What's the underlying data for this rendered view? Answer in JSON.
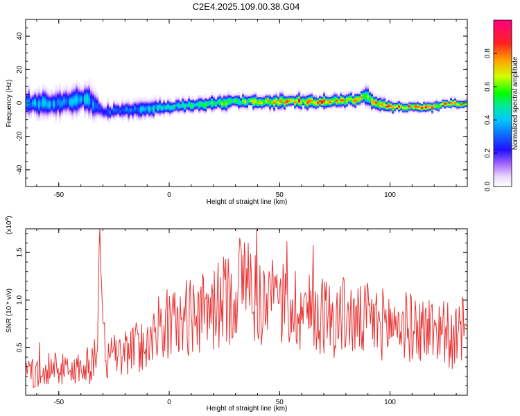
{
  "title": "C2E4.2025.109.00.38.G04",
  "colors": {
    "snr_line": "#e83232",
    "spectrogram_background": "#ffffff",
    "colormap": [
      "#ffffff",
      "#e8d8ff",
      "#a060ff",
      "#2010ff",
      "#1060ff",
      "#00c8ff",
      "#00e8a0",
      "#00ff00",
      "#d0ff00",
      "#ffa000",
      "#ff2020",
      "#ff0080"
    ]
  },
  "chart_data": [
    {
      "type": "heatmap",
      "title": "C2E4.2025.109.00.38.G04",
      "xlabel": "Height of straight line (km)",
      "ylabel": "Frequency (Hz)",
      "xlim": [
        -65,
        135
      ],
      "ylim": [
        -50,
        50
      ],
      "x_ticks": [
        "-50",
        "0",
        "50",
        "100"
      ],
      "y_ticks": [
        "-40",
        "-20",
        "0",
        "20",
        "40"
      ],
      "grid": false,
      "colorbar": {
        "label": "Normalized spectral amplitude",
        "range": [
          0,
          1
        ],
        "ticks": [
          "0.0",
          "0.2",
          "0.4",
          "0.6",
          "0.8"
        ]
      },
      "ridge": {
        "description_x": [
          -65,
          -55,
          -45,
          -38,
          -35,
          -30,
          -20,
          -10,
          0,
          10,
          20,
          30,
          40,
          50,
          60,
          70,
          80,
          85,
          88,
          92,
          95,
          100,
          110,
          120,
          125,
          135
        ],
        "center_hz": [
          0,
          0,
          1,
          3,
          0,
          -5,
          -4,
          -3,
          -2,
          -1,
          0,
          1,
          1,
          1,
          1,
          1,
          2,
          2,
          5,
          1,
          -1,
          -2,
          -2,
          -2,
          0,
          0
        ],
        "halfwidth_hz": [
          6,
          6,
          6,
          7,
          6,
          4,
          4,
          4,
          3,
          3,
          3,
          3,
          3,
          3,
          3,
          3,
          3,
          3,
          4,
          3,
          3,
          2,
          2,
          2,
          2,
          2
        ],
        "peak_amplitude": [
          0.45,
          0.45,
          0.45,
          0.5,
          0.4,
          0.35,
          0.4,
          0.5,
          0.55,
          0.6,
          0.65,
          0.7,
          0.75,
          0.85,
          0.9,
          0.92,
          0.85,
          0.88,
          0.7,
          0.8,
          0.85,
          0.9,
          0.9,
          0.88,
          0.9,
          0.85
        ]
      }
    },
    {
      "type": "line",
      "xlabel": "Height of straight line (km)",
      "ylabel": "SNR (10 * v/v)",
      "y_multiplier": "(x10",
      "y_multiplier_exp": "4",
      "y_multiplier_close": ")",
      "xlim": [
        -65,
        135
      ],
      "ylim": [
        0,
        1.75
      ],
      "x_ticks": [
        "-50",
        "0",
        "50",
        "100"
      ],
      "y_ticks": [
        "0.5",
        "1.0",
        "1.5"
      ],
      "grid": false,
      "series": [
        {
          "x": [
            -65,
            -60,
            -55,
            -50,
            -45,
            -40,
            -36,
            -33,
            -32,
            -31.5,
            -31,
            -30,
            -28,
            -25,
            -20,
            -15,
            -10,
            -5,
            0,
            5,
            10,
            15,
            20,
            25,
            30,
            33,
            35,
            37,
            40,
            45,
            50,
            55,
            60,
            65,
            70,
            75,
            80,
            85,
            90,
            95,
            100,
            105,
            110,
            115,
            120,
            125,
            128,
            130,
            133,
            135
          ],
          "y": [
            0.25,
            0.22,
            0.3,
            0.28,
            0.25,
            0.3,
            0.28,
            0.5,
            1.0,
            1.75,
            0.9,
            0.6,
            0.35,
            0.4,
            0.45,
            0.5,
            0.55,
            0.7,
            0.75,
            0.75,
            0.85,
            0.85,
            0.9,
            1.0,
            1.1,
            1.2,
            1.3,
            1.1,
            1.0,
            0.95,
            0.95,
            0.95,
            0.9,
            0.85,
            0.85,
            0.8,
            0.85,
            0.75,
            0.8,
            0.75,
            0.75,
            0.75,
            0.7,
            0.7,
            0.7,
            0.7,
            0.55,
            0.6,
            0.7,
            0.65
          ]
        }
      ]
    }
  ]
}
